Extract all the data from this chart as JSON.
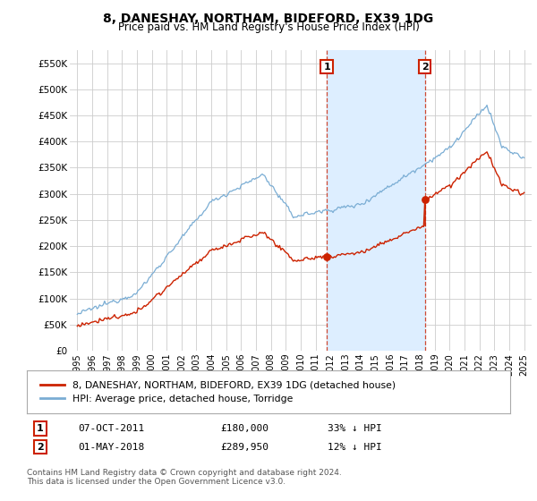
{
  "title": "8, DANESHAY, NORTHAM, BIDEFORD, EX39 1DG",
  "subtitle": "Price paid vs. HM Land Registry's House Price Index (HPI)",
  "background_color": "#ffffff",
  "grid_color": "#cccccc",
  "hpi_color": "#7aadd4",
  "price_color": "#cc2200",
  "vline_color": "#cc2200",
  "sale1_x": 2011.75,
  "sale1_y": 180000,
  "sale2_x": 2018.33,
  "sale2_y": 289950,
  "ylim": [
    0,
    575000
  ],
  "xlim": [
    1994.5,
    2025.5
  ],
  "legend_label_price": "8, DANESHAY, NORTHAM, BIDEFORD, EX39 1DG (detached house)",
  "legend_label_hpi": "HPI: Average price, detached house, Torridge",
  "annotation1_label": "1",
  "annotation1_date": "07-OCT-2011",
  "annotation1_price": "£180,000",
  "annotation1_hpi": "33% ↓ HPI",
  "annotation2_label": "2",
  "annotation2_date": "01-MAY-2018",
  "annotation2_price": "£289,950",
  "annotation2_hpi": "12% ↓ HPI",
  "footer": "Contains HM Land Registry data © Crown copyright and database right 2024.\nThis data is licensed under the Open Government Licence v3.0.",
  "yticks": [
    0,
    50000,
    100000,
    150000,
    200000,
    250000,
    300000,
    350000,
    400000,
    450000,
    500000,
    550000
  ],
  "ytick_labels": [
    "£0",
    "£50K",
    "£100K",
    "£150K",
    "£200K",
    "£250K",
    "£300K",
    "£350K",
    "£400K",
    "£450K",
    "£500K",
    "£550K"
  ],
  "span_color": "#ddeeff"
}
